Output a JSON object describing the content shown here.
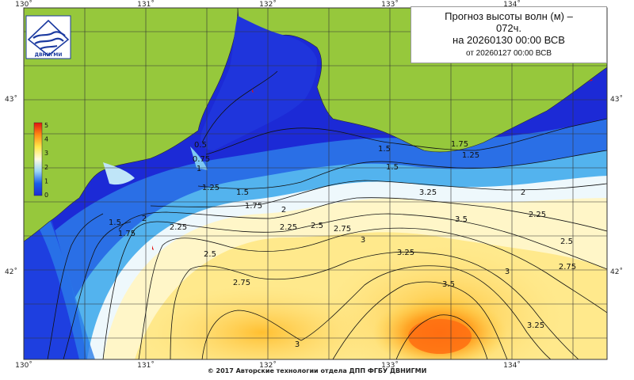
{
  "title": {
    "line1": "Прогноз высоты волн (м) –",
    "line2": "072ч.",
    "line3": "на 20260130 00:00 ВСВ",
    "line4": "от 20260127 00:00 ВСВ"
  },
  "logo": {
    "text": "ДВНИГМИ",
    "icon": "dvnigmi-logo-icon"
  },
  "footer": "© 2017 Авторские технологии отдела ДПП ФГБУ ДВНИГМИ",
  "axes": {
    "lon_ticks": [
      "130˚",
      "131˚",
      "132˚",
      "133˚",
      "134˚"
    ],
    "lat_ticks": [
      "43˚",
      "42˚"
    ]
  },
  "colorbar": {
    "labels": [
      "5",
      "4",
      "3",
      "2",
      "1",
      "0"
    ],
    "stops": [
      "#e11410",
      "#ff8c14",
      "#ffe84b",
      "#fffbe0",
      "#9ad5f5",
      "#1a5fe8",
      "#1c2ad6"
    ]
  },
  "colors": {
    "land": "#96c83c",
    "sea_deep": "#1c2ad6",
    "sea_mid": "#3c9be8",
    "crest": "#ffffff",
    "warm": "#ffd24a",
    "hot": "#ff8a1e",
    "grid": "#333333"
  },
  "contour_labels": [
    "0.5",
    "0.75",
    "1",
    "1.25",
    "1.5",
    "1.75",
    "2",
    "2.25",
    "2.5",
    "2.75",
    "3",
    "3.25",
    "3.5",
    "1.5",
    "1.25",
    "1.5",
    "1.75",
    "2",
    "2.25",
    "2.5",
    "2.75",
    "3",
    "3.25",
    "1.5",
    "1.75",
    "2",
    "2.25",
    "2.5",
    "2.75",
    "3",
    "3.25",
    "3.5"
  ]
}
